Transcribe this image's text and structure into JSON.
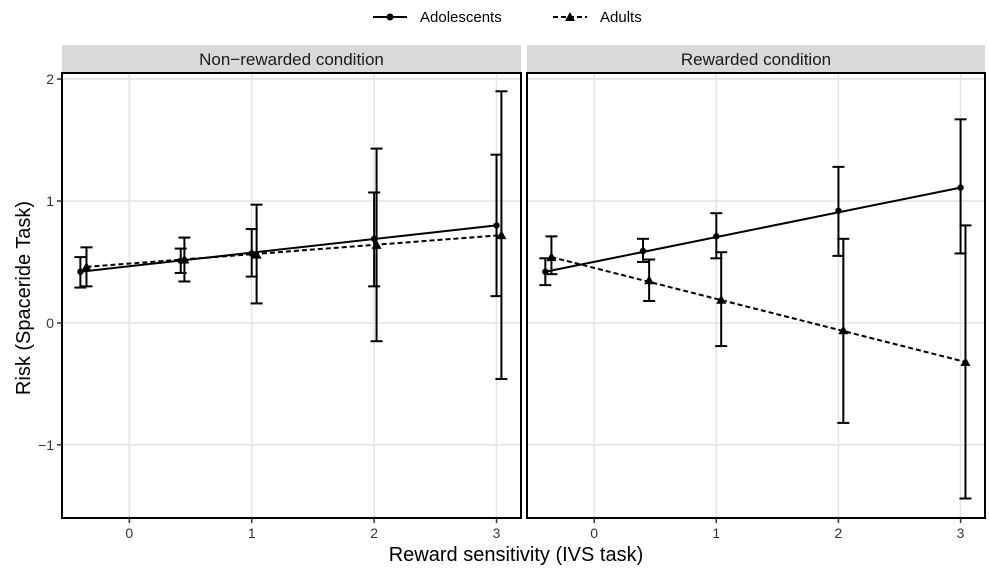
{
  "chart_data": {
    "type": "line",
    "xlabel": "Reward sensitivity (IVS task)",
    "ylabel": "Risk (Spaceride Task)",
    "legend": {
      "placement": "top-center",
      "entries": [
        {
          "name": "Adolescents",
          "marker": "circle",
          "linestyle": "solid"
        },
        {
          "name": "Adults",
          "marker": "triangle",
          "linestyle": "dashed"
        }
      ]
    },
    "xlim": [
      -0.55,
      3.2
    ],
    "ylim": [
      -1.6,
      2.05
    ],
    "xticks": [
      0,
      1,
      2,
      3
    ],
    "yticks": [
      -1,
      0,
      1,
      2
    ],
    "xtick_labels": [
      "0",
      "1",
      "2",
      "3"
    ],
    "ytick_labels": [
      "−1",
      "0",
      "1",
      "2"
    ],
    "grid": true,
    "colors": {
      "line": "#000000",
      "panel_strip": "#d9d9d9",
      "grid": "#e5e5e5"
    },
    "panels": [
      {
        "title": "Non−rewarded condition",
        "series": [
          {
            "name": "Adolescents",
            "points": [
              {
                "x": -0.4,
                "y": 0.42,
                "lo": 0.29,
                "hi": 0.54
              },
              {
                "x": 0.42,
                "y": 0.51,
                "lo": 0.41,
                "hi": 0.61
              },
              {
                "x": 1.0,
                "y": 0.57,
                "lo": 0.38,
                "hi": 0.77
              },
              {
                "x": 2.0,
                "y": 0.69,
                "lo": 0.3,
                "hi": 1.07
              },
              {
                "x": 3.0,
                "y": 0.8,
                "lo": 0.22,
                "hi": 1.38
              }
            ]
          },
          {
            "name": "Adults",
            "points": [
              {
                "x": -0.35,
                "y": 0.46,
                "lo": 0.3,
                "hi": 0.62
              },
              {
                "x": 0.45,
                "y": 0.52,
                "lo": 0.34,
                "hi": 0.7
              },
              {
                "x": 1.04,
                "y": 0.56,
                "lo": 0.16,
                "hi": 0.97
              },
              {
                "x": 2.02,
                "y": 0.64,
                "lo": -0.15,
                "hi": 1.43
              },
              {
                "x": 3.04,
                "y": 0.72,
                "lo": -0.46,
                "hi": 1.9
              }
            ]
          }
        ]
      },
      {
        "title": "Rewarded condition",
        "series": [
          {
            "name": "Adolescents",
            "points": [
              {
                "x": -0.4,
                "y": 0.42,
                "lo": 0.31,
                "hi": 0.53
              },
              {
                "x": 0.4,
                "y": 0.59,
                "lo": 0.5,
                "hi": 0.69
              },
              {
                "x": 1.0,
                "y": 0.71,
                "lo": 0.53,
                "hi": 0.9
              },
              {
                "x": 2.0,
                "y": 0.92,
                "lo": 0.55,
                "hi": 1.28
              },
              {
                "x": 3.0,
                "y": 1.11,
                "lo": 0.57,
                "hi": 1.67
              }
            ]
          },
          {
            "name": "Adults",
            "points": [
              {
                "x": -0.35,
                "y": 0.54,
                "lo": 0.4,
                "hi": 0.71
              },
              {
                "x": 0.45,
                "y": 0.35,
                "lo": 0.18,
                "hi": 0.52
              },
              {
                "x": 1.04,
                "y": 0.19,
                "lo": -0.19,
                "hi": 0.58
              },
              {
                "x": 2.04,
                "y": -0.06,
                "lo": -0.82,
                "hi": 0.69
              },
              {
                "x": 3.04,
                "y": -0.32,
                "lo": -1.44,
                "hi": 0.8
              }
            ]
          }
        ]
      }
    ]
  }
}
